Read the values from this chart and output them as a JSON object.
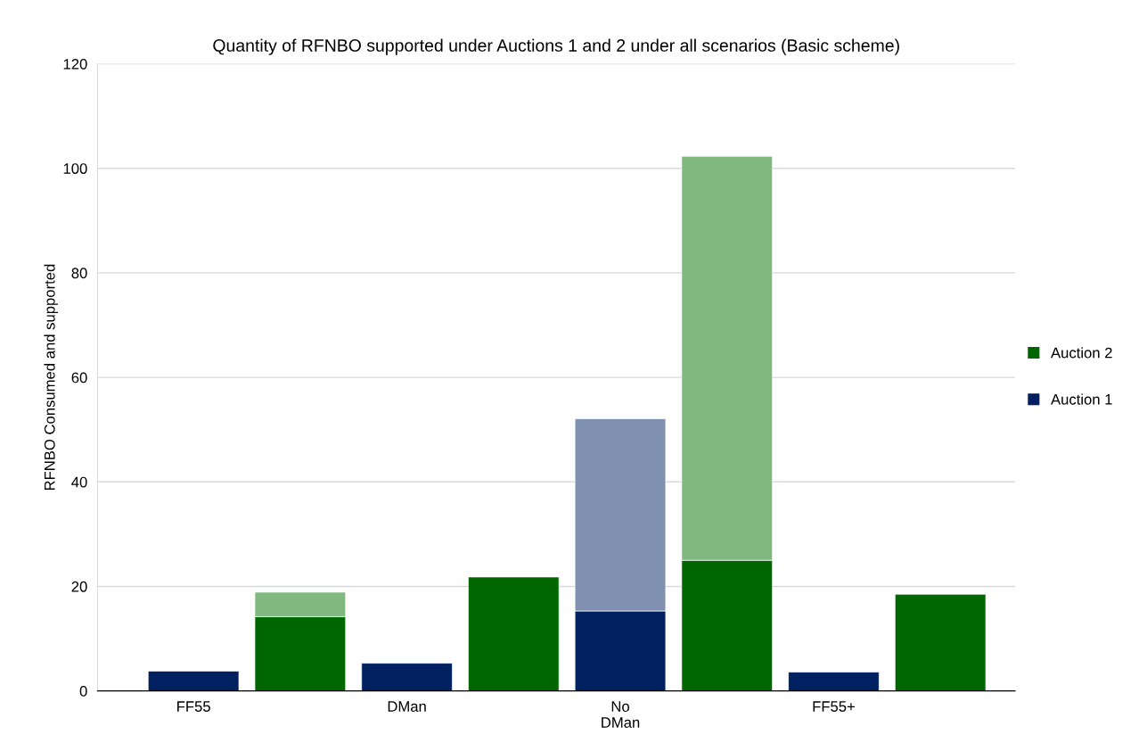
{
  "chart_data": {
    "type": "bar",
    "title": "Quantity of RFNBO supported under Auctions 1 and 2 under all scenarios (Basic scheme)",
    "ylabel": "RFNBO Consumed and supported",
    "categories": [
      "FF55",
      null,
      "DMan",
      null,
      "No\nDMan",
      null,
      "FF55+",
      null
    ],
    "stacked": true,
    "ylim": [
      0,
      120
    ],
    "yticks": [
      0,
      20,
      40,
      60,
      80,
      100,
      120
    ],
    "grid": "y",
    "legend": "right",
    "series": [
      {
        "name": "Auction 1",
        "color": "#002060",
        "values": [
          3.8,
          null,
          5.3,
          null,
          15.3,
          null,
          3.6,
          null
        ]
      },
      {
        "color": "#8090b0",
        "values": [
          null,
          null,
          null,
          null,
          36.8,
          null,
          null,
          null
        ]
      },
      {
        "name": "Auction 2",
        "color": "#006600",
        "values": [
          null,
          14.2,
          null,
          21.8,
          null,
          25.0,
          null,
          18.5
        ]
      },
      {
        "color": "#80b880",
        "values": [
          null,
          4.7,
          null,
          null,
          null,
          77.3,
          null,
          null
        ]
      }
    ]
  }
}
